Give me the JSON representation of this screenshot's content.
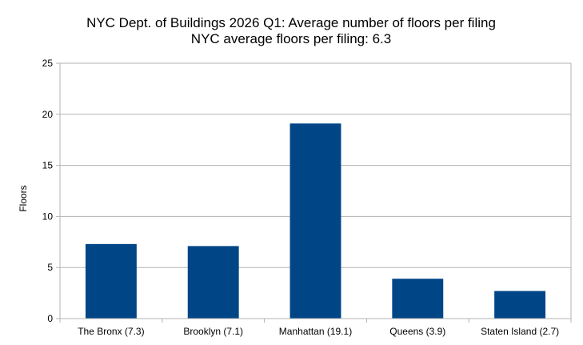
{
  "chart_data": {
    "type": "bar",
    "title": "NYC Dept. of Buildings 2026 Q1: Average number of floors per filing",
    "subtitle": "NYC average floors per filing: 6.3",
    "xlabel": "",
    "ylabel": "Floors",
    "categories": [
      "The Bronx (7.3)",
      "Brooklyn (7.1)",
      "Manhattan (19.1)",
      "Queens (3.9)",
      "Staten Island (2.7)"
    ],
    "values": [
      7.3,
      7.1,
      19.1,
      3.9,
      2.7
    ],
    "ylim": [
      0,
      25
    ],
    "yticks": [
      "0",
      "5",
      "10",
      "15",
      "20",
      "25"
    ],
    "grid": true,
    "legend": "none",
    "colors": {
      "bar": "#004586",
      "grid": "#b3b3b3",
      "axis": "#b3b3b3"
    }
  }
}
